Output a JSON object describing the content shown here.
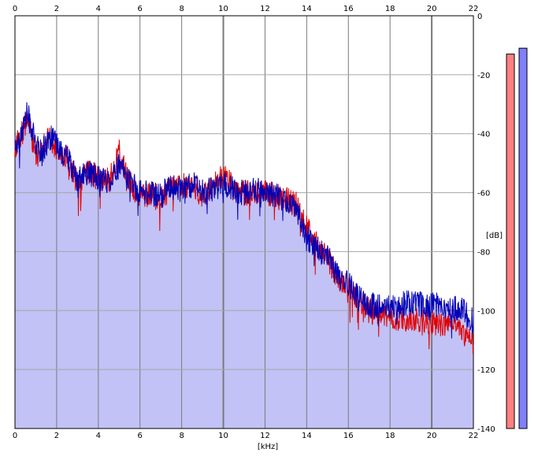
{
  "chart_data": {
    "type": "area",
    "xlabel": "[kHz]",
    "ylabel": "[dB]",
    "xlim": [
      0,
      22
    ],
    "ylim": [
      -140,
      0
    ],
    "x_ticks": [
      "0",
      "2",
      "4",
      "6",
      "8",
      "10",
      "12",
      "14",
      "16",
      "18",
      "20",
      "22"
    ],
    "y_ticks": [
      "0",
      "-20",
      "-40",
      "-60",
      "-80",
      "-100",
      "-120",
      "-140"
    ],
    "grid": true,
    "colors": {
      "fill": "#c2c2f6",
      "blue_series": "#0000b8",
      "red_series": "#e00000",
      "grid": "#a6a6a6",
      "grid_major": "#7a7a7a",
      "meter_left": "#ff8080",
      "meter_right": "#8080ff"
    },
    "series": [
      {
        "color": "blue",
        "x": [
          0,
          0.3,
          0.6,
          1.0,
          1.3,
          1.7,
          2.0,
          2.5,
          3.0,
          3.5,
          4.0,
          4.5,
          5.0,
          5.5,
          6.0,
          6.5,
          7.0,
          7.5,
          8.0,
          8.5,
          9.0,
          9.5,
          10.0,
          10.5,
          11.0,
          11.5,
          12.0,
          12.5,
          13.0,
          13.5,
          14.0,
          14.5,
          15.0,
          15.5,
          16.0,
          16.5,
          17.0,
          17.5,
          18.0,
          18.5,
          19.0,
          19.5,
          20.0,
          20.5,
          21.0,
          21.5,
          22.0
        ],
        "y": [
          -44,
          -40,
          -33,
          -44,
          -46,
          -41,
          -44,
          -48,
          -56,
          -53,
          -55,
          -56,
          -51,
          -56,
          -60,
          -60,
          -61,
          -58,
          -59,
          -57,
          -60,
          -59,
          -57,
          -59,
          -60,
          -59,
          -60,
          -61,
          -62,
          -65,
          -75,
          -79,
          -82,
          -88,
          -91,
          -96,
          -98,
          -99,
          -99,
          -98,
          -97,
          -98,
          -98,
          -98,
          -99,
          -100,
          -104
        ]
      },
      {
        "color": "red",
        "x": [
          0,
          0.3,
          0.6,
          1.0,
          1.3,
          1.7,
          2.0,
          2.5,
          3.0,
          3.5,
          4.0,
          4.5,
          5.0,
          5.5,
          6.0,
          6.5,
          7.0,
          7.5,
          8.0,
          8.5,
          9.0,
          9.5,
          10.0,
          10.5,
          11.0,
          11.5,
          12.0,
          12.5,
          13.0,
          13.5,
          14.0,
          14.5,
          15.0,
          15.5,
          16.0,
          16.5,
          17.0,
          17.5,
          18.0,
          18.5,
          19.0,
          19.5,
          20.0,
          20.5,
          21.0,
          21.5,
          22.0
        ],
        "y": [
          -44,
          -41,
          -34,
          -46,
          -45,
          -41,
          -45,
          -48,
          -57,
          -53,
          -55,
          -56,
          -46,
          -57,
          -61,
          -61,
          -62,
          -58,
          -58,
          -57,
          -61,
          -58,
          -53,
          -59,
          -60,
          -60,
          -60,
          -61,
          -62,
          -64,
          -72,
          -78,
          -82,
          -89,
          -92,
          -97,
          -100,
          -101,
          -102,
          -103,
          -103,
          -104,
          -104,
          -105,
          -104,
          -108,
          -111
        ]
      }
    ],
    "meters": [
      {
        "color": "red",
        "top_db": -13
      },
      {
        "color": "blue",
        "top_db": -11
      }
    ]
  }
}
